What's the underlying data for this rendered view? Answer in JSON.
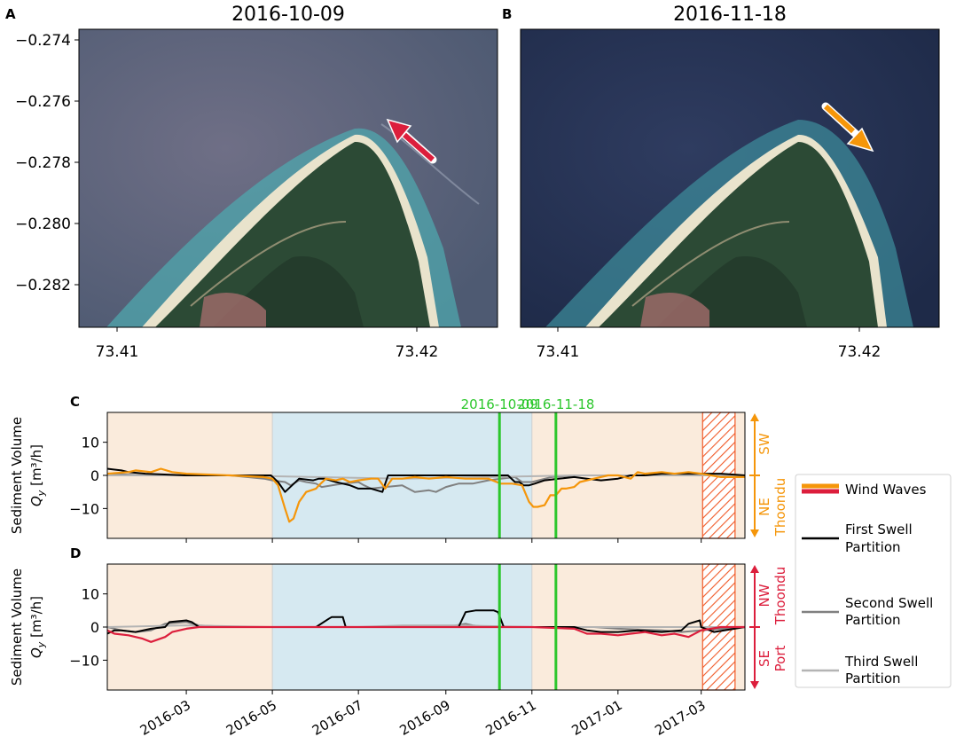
{
  "panels_top": [
    {
      "letter": "A",
      "title": "2016-10-09",
      "y_ticks": [
        "−0.274",
        "−0.276",
        "−0.278",
        "−0.280",
        "−0.282"
      ],
      "x_ticks": [
        "73.41",
        "73.42"
      ],
      "arrow_color": "#dc1e3c"
    },
    {
      "letter": "B",
      "title": "2016-11-18",
      "y_ticks": [],
      "x_ticks": [
        "73.41",
        "73.42"
      ],
      "arrow_color": "#f5960a"
    }
  ],
  "colors": {
    "ne_season": "#faebdc",
    "sw_season": "#d6e9f1",
    "event_line": "#2cc72c",
    "wind_waves_orange": "#f5960a",
    "wind_waves_red": "#dc1e3c",
    "hatch": "#f05a28",
    "first_swell": "#000000",
    "second_swell": "#808080",
    "third_swell": "#b4b4b4"
  },
  "chart_data": [
    {
      "type": "line",
      "panel": "C",
      "ylabel": "Sediment Volume",
      "ylabel_sub": "Q_y [m³/h]",
      "ylim": [
        -19,
        19
      ],
      "y_ticks": [
        10,
        0,
        -10
      ],
      "x_range": [
        "2016-01-05",
        "2017-04-01"
      ],
      "x_tick_dates": [
        "2016-03-01",
        "2016-05-01",
        "2016-07-01",
        "2016-09-01",
        "2016-11-01",
        "2017-01-01",
        "2017-03-01"
      ],
      "x_tick_labels": [
        "2016-03",
        "2016-05",
        "2016-07",
        "2016-09",
        "2016-11",
        "2017-01",
        "2017-03"
      ],
      "show_x_tick_labels": false,
      "sw_season": [
        "2016-05-01",
        "2016-11-01"
      ],
      "hatched": [
        "2017-03-02",
        "2017-03-25"
      ],
      "event_lines": [
        {
          "date": "2016-10-09",
          "label": "2016-10-09"
        },
        {
          "date": "2016-11-18",
          "label": "2016-11-18"
        }
      ],
      "right_labels": {
        "top": "SW",
        "bottom": "NE",
        "place": "Thoondu",
        "color": "#f5960a"
      },
      "series": [
        {
          "key": "second",
          "color": "#808080",
          "x": [
            "2016-01-05",
            "2016-02-01",
            "2016-04-01",
            "2016-04-25",
            "2016-05-01",
            "2016-05-10",
            "2016-05-14",
            "2016-05-20",
            "2016-05-25",
            "2016-06-01",
            "2016-06-05",
            "2016-06-20",
            "2016-07-01",
            "2016-07-05",
            "2016-07-10",
            "2016-07-20",
            "2016-08-01",
            "2016-08-10",
            "2016-08-20",
            "2016-08-25",
            "2016-09-01",
            "2016-09-10",
            "2016-09-20",
            "2016-10-01",
            "2016-10-10",
            "2016-10-20",
            "2016-10-25",
            "2016-11-01",
            "2016-11-15",
            "2016-12-01",
            "2017-01-01",
            "2017-02-01",
            "2017-03-01",
            "2017-04-01"
          ],
          "y": [
            0.5,
            0,
            0,
            -1,
            -1.5,
            -2,
            -3,
            -1.5,
            -2,
            -2.5,
            -3.5,
            -2.5,
            -2,
            -3,
            -4,
            -3.5,
            -3,
            -5,
            -4.5,
            -5,
            -3.5,
            -2.5,
            -2.5,
            -1.5,
            -1,
            -0.5,
            -2,
            -2,
            -0.5,
            0,
            0,
            0,
            0,
            0
          ]
        },
        {
          "key": "third",
          "color": "#b4b4b4",
          "x": [
            "2016-01-05",
            "2016-04-01",
            "2016-06-01",
            "2016-08-01",
            "2016-10-01",
            "2016-12-01",
            "2017-02-01",
            "2017-04-01"
          ],
          "y": [
            0,
            0,
            -0.5,
            -1,
            -0.5,
            0,
            0,
            0
          ]
        },
        {
          "key": "first",
          "color": "#000000",
          "x": [
            "2016-01-05",
            "2016-01-15",
            "2016-01-20",
            "2016-02-01",
            "2016-03-01",
            "2016-04-01",
            "2016-04-25",
            "2016-04-30",
            "2016-05-05",
            "2016-05-10",
            "2016-05-15",
            "2016-05-20",
            "2016-05-30",
            "2016-06-03",
            "2016-06-07",
            "2016-06-15",
            "2016-06-25",
            "2016-07-01",
            "2016-07-10",
            "2016-07-18",
            "2016-07-22",
            "2016-07-28",
            "2016-08-01",
            "2016-08-10",
            "2016-09-01",
            "2016-10-01",
            "2016-10-15",
            "2016-10-20",
            "2016-10-23",
            "2016-10-26",
            "2016-10-30",
            "2016-11-03",
            "2016-11-10",
            "2016-11-20",
            "2016-12-01",
            "2016-12-10",
            "2016-12-20",
            "2017-01-01",
            "2017-01-10",
            "2017-01-20",
            "2017-02-01",
            "2017-02-20",
            "2017-03-01",
            "2017-03-15",
            "2017-04-01"
          ],
          "y": [
            2,
            1.5,
            1,
            0.5,
            0,
            0,
            0,
            0,
            -2,
            -5,
            -3,
            -1,
            -1.5,
            -1,
            -1,
            -2,
            -3,
            -4,
            -4,
            -5,
            0,
            0,
            0,
            0,
            0,
            0,
            0,
            -2,
            -2,
            -3,
            -3,
            -2.5,
            -1.5,
            -1,
            -0.5,
            -1,
            -1.5,
            -1,
            0,
            0,
            0.5,
            0.5,
            0.5,
            0.5,
            0
          ]
        },
        {
          "key": "wind",
          "color": "#f5960a",
          "x": [
            "2016-01-05",
            "2016-01-20",
            "2016-01-25",
            "2016-02-05",
            "2016-02-12",
            "2016-02-20",
            "2016-03-01",
            "2016-04-01",
            "2016-04-25",
            "2016-05-01",
            "2016-05-05",
            "2016-05-10",
            "2016-05-13",
            "2016-05-16",
            "2016-05-20",
            "2016-05-25",
            "2016-06-01",
            "2016-06-03",
            "2016-06-08",
            "2016-06-15",
            "2016-06-20",
            "2016-06-25",
            "2016-07-01",
            "2016-07-10",
            "2016-07-15",
            "2016-07-20",
            "2016-07-25",
            "2016-08-01",
            "2016-08-10",
            "2016-08-20",
            "2016-09-01",
            "2016-09-15",
            "2016-10-01",
            "2016-10-10",
            "2016-10-18",
            "2016-10-25",
            "2016-10-30",
            "2016-11-02",
            "2016-11-05",
            "2016-11-10",
            "2016-11-14",
            "2016-11-18",
            "2016-11-22",
            "2016-11-25",
            "2016-12-01",
            "2016-12-05",
            "2016-12-15",
            "2016-12-25",
            "2017-01-01",
            "2017-01-10",
            "2017-01-15",
            "2017-01-20",
            "2017-02-01",
            "2017-02-10",
            "2017-02-20",
            "2017-03-01",
            "2017-03-15",
            "2017-04-01"
          ],
          "y": [
            0.5,
            1,
            1.5,
            1,
            2,
            1,
            0.5,
            0,
            -0.5,
            -1,
            -3,
            -10,
            -14,
            -13,
            -8,
            -5,
            -4,
            -3,
            -1,
            -1.5,
            -1,
            -2,
            -1.5,
            -1,
            -1,
            -4,
            -1,
            -1,
            -0.5,
            -1,
            -0.5,
            -1,
            -1,
            -2.5,
            -2.5,
            -3,
            -8,
            -9.5,
            -9.5,
            -9,
            -6,
            -6,
            -4,
            -4,
            -3.5,
            -2,
            -1,
            0,
            0,
            -1,
            1,
            0.5,
            1,
            0.5,
            1,
            0.5,
            -0.5,
            -0.5
          ]
        }
      ]
    },
    {
      "type": "line",
      "panel": "D",
      "ylabel": "Sediment Volume",
      "ylabel_sub": "Q_y [m³/h]",
      "ylim": [
        -19,
        19
      ],
      "y_ticks": [
        10,
        0,
        -10
      ],
      "x_range": [
        "2016-01-05",
        "2017-04-01"
      ],
      "x_tick_dates": [
        "2016-03-01",
        "2016-05-01",
        "2016-07-01",
        "2016-09-01",
        "2016-11-01",
        "2017-01-01",
        "2017-03-01"
      ],
      "x_tick_labels": [
        "2016-03",
        "2016-05",
        "2016-07",
        "2016-09",
        "2016-11",
        "2017-01",
        "2017-03"
      ],
      "show_x_tick_labels": true,
      "sw_season": [
        "2016-05-01",
        "2016-11-01"
      ],
      "hatched": [
        "2017-03-02",
        "2017-03-25"
      ],
      "event_lines": [
        {
          "date": "2016-10-09",
          "label": ""
        },
        {
          "date": "2016-11-18",
          "label": ""
        }
      ],
      "right_labels": {
        "top": "NW",
        "bottom": "SE",
        "place": "Thoondu",
        "place2": "Port",
        "color": "#dc1e3c"
      },
      "series": [
        {
          "key": "second",
          "color": "#808080",
          "x": [
            "2016-01-05",
            "2016-01-15",
            "2016-01-25",
            "2016-02-05",
            "2016-02-15",
            "2016-03-01",
            "2016-03-10",
            "2016-04-01",
            "2016-06-01",
            "2016-08-01",
            "2016-09-01",
            "2016-09-15",
            "2016-09-20",
            "2016-10-01",
            "2016-10-05",
            "2016-11-01",
            "2016-12-15",
            "2017-01-01",
            "2017-02-01",
            "2017-02-15",
            "2017-03-01",
            "2017-04-01"
          ],
          "y": [
            0,
            -1,
            -1.5,
            -1,
            1,
            1.5,
            0.5,
            0,
            0,
            0,
            0,
            1,
            0.5,
            0,
            0,
            0,
            0,
            -0.5,
            -1,
            -1.5,
            -1,
            0
          ]
        },
        {
          "key": "third",
          "color": "#b4b4b4",
          "x": [
            "2016-01-05",
            "2016-03-01",
            "2016-05-01",
            "2016-07-01",
            "2016-08-01",
            "2016-09-10",
            "2016-11-01",
            "2017-01-01",
            "2017-03-01",
            "2017-04-01"
          ],
          "y": [
            0,
            0.5,
            0,
            0,
            0.5,
            0.5,
            0,
            0,
            0,
            0
          ]
        },
        {
          "key": "first",
          "color": "#000000",
          "x": [
            "2016-01-05",
            "2016-01-10",
            "2016-01-15",
            "2016-01-25",
            "2016-02-05",
            "2016-02-15",
            "2016-02-18",
            "2016-03-01",
            "2016-03-05",
            "2016-03-10",
            "2016-04-01",
            "2016-06-01",
            "2016-06-10",
            "2016-06-12",
            "2016-06-20",
            "2016-06-22",
            "2016-07-01",
            "2016-08-01",
            "2016-09-10",
            "2016-09-15",
            "2016-09-22",
            "2016-10-05",
            "2016-10-08",
            "2016-10-12",
            "2016-11-01",
            "2016-12-01",
            "2016-12-10",
            "2016-12-20",
            "2017-01-01",
            "2017-01-15",
            "2017-02-01",
            "2017-02-15",
            "2017-02-20",
            "2017-02-28",
            "2017-03-01",
            "2017-03-10",
            "2017-04-01"
          ],
          "y": [
            -2,
            -1,
            -1,
            -1.5,
            -0.5,
            0,
            1.5,
            2,
            1.5,
            0,
            0,
            0,
            2.5,
            3,
            3,
            0,
            0,
            0,
            0,
            4.5,
            5,
            5,
            4.5,
            0,
            0,
            0,
            -1,
            -1.5,
            -1.5,
            -1,
            -1.5,
            -1,
            1,
            2,
            0,
            -1.5,
            0
          ]
        },
        {
          "key": "wind",
          "color": "#dc1e3c",
          "x": [
            "2016-01-05",
            "2016-01-10",
            "2016-01-20",
            "2016-01-30",
            "2016-02-05",
            "2016-02-15",
            "2016-02-20",
            "2016-03-01",
            "2016-03-10",
            "2016-04-01",
            "2016-08-01",
            "2016-10-01",
            "2016-11-01",
            "2016-12-01",
            "2016-12-10",
            "2016-12-20",
            "2017-01-01",
            "2017-01-10",
            "2017-01-20",
            "2017-02-01",
            "2017-02-10",
            "2017-02-20",
            "2017-03-01",
            "2017-03-15",
            "2017-04-01"
          ],
          "y": [
            -1,
            -2,
            -2.5,
            -3.5,
            -4.5,
            -3,
            -1.5,
            -0.5,
            0,
            0,
            0,
            0,
            0,
            -0.5,
            -2,
            -2,
            -2.5,
            -2,
            -1.5,
            -2.5,
            -2,
            -3,
            -1,
            0,
            0
          ]
        }
      ]
    }
  ],
  "legend": {
    "items": [
      {
        "key": "wind",
        "label": "Wind Waves"
      },
      {
        "key": "first",
        "label": "First Swell Partition"
      },
      {
        "key": "second",
        "label": "Second Swell Partition"
      },
      {
        "key": "third",
        "label": "Third Swell Partition"
      }
    ]
  }
}
